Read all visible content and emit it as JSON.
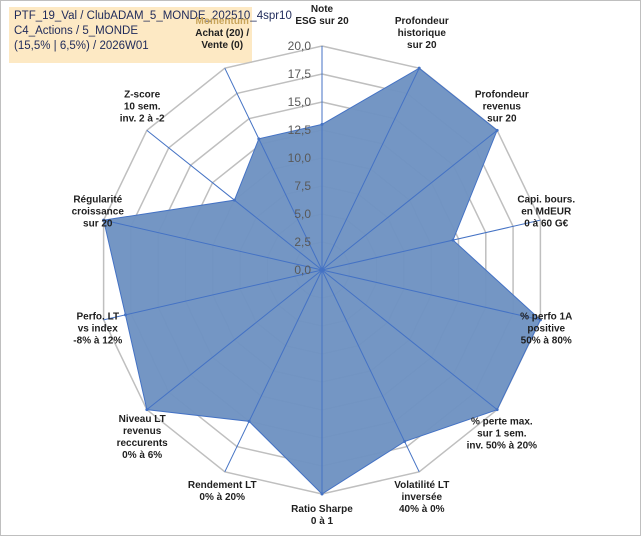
{
  "info": {
    "line1": "PTF_19_Val / ClubADAM_5_MONDE_202510_4spr10",
    "line2": "C4_Actions / 5_MONDE",
    "line3": "(15,5% | 6,5%) / 2026W01"
  },
  "chart_data": {
    "type": "radar",
    "range": [
      0,
      20
    ],
    "tick_step": 2.5,
    "tick_labels": [
      "0,0",
      "2,5",
      "5,0",
      "7,5",
      "10,0",
      "12,5",
      "15,0",
      "17,5",
      "20,0"
    ],
    "fill_color": "#6f93c2",
    "line_color": "#4472c4",
    "grid_color": "#bfbfbf",
    "axes": [
      {
        "label": [
          "Note",
          "ESG sur 20"
        ],
        "value": 13
      },
      {
        "label": [
          "Profondeur",
          "historique",
          "sur 20"
        ],
        "value": 20
      },
      {
        "label": [
          "Profondeur",
          "revenus",
          "sur 20"
        ],
        "value": 20
      },
      {
        "label": [
          "Capi. bours.",
          "en MdEUR",
          "0 à 60 G€"
        ],
        "value": 12
      },
      {
        "label": [
          "% perfo 1A",
          "positive",
          "50% à 80%"
        ],
        "value": 20
      },
      {
        "label": [
          "% perte max.",
          "sur 1 sem.",
          "inv. 50% à 20%"
        ],
        "value": 20
      },
      {
        "label": [
          "Volatilité LT",
          "inversée",
          "40% à 0%"
        ],
        "value": 17
      },
      {
        "label": [
          "Ratio Sharpe",
          "0 à 1"
        ],
        "value": 20
      },
      {
        "label": [
          "Rendement LT",
          "0% à 20%"
        ],
        "value": 15
      },
      {
        "label": [
          "Niveau LT",
          "revenus",
          "reccurents",
          "0% à 6%"
        ],
        "value": 20
      },
      {
        "label": [
          "Perfo. LT",
          "vs index",
          "-8% à 12%"
        ],
        "value": 18
      },
      {
        "label": [
          "Régularité",
          "croissance",
          "sur 20"
        ],
        "value": 20
      },
      {
        "label": [
          "Z-score",
          "10 sem.",
          "inv. 2 à -2"
        ],
        "value": 10
      },
      {
        "label": [
          "Momentum",
          "Achat (20) /",
          "Vente (0)"
        ],
        "value": 13
      }
    ],
    "highlighted_label_word": "Momentum"
  }
}
